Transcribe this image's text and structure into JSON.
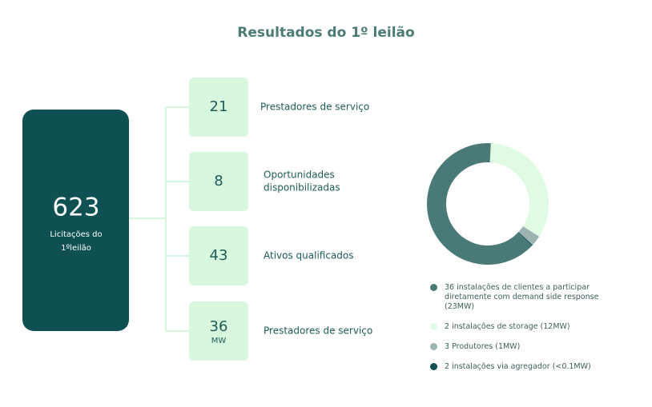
{
  "title": "Resultados do 1º leilão",
  "summary": {
    "value": 623,
    "label_lines": [
      "Licitações do",
      "1ºleilão"
    ]
  },
  "items": [
    {
      "value": 21,
      "label_lines": [
        "Prestadores de serviço"
      ]
    },
    {
      "value": 8,
      "label_lines": [
        "Oportunidades",
        "disponibilizadas"
      ]
    },
    {
      "value": 43,
      "label_lines": [
        "Ativos qualificados"
      ]
    },
    {
      "value": 36,
      "unit": "MW",
      "label_lines": [
        "Prestadores de serviço"
      ]
    }
  ],
  "chart_data": {
    "type": "pie",
    "donut": true,
    "categories": [
      "36 instalações de clientes a participar diretamente com demand side response (23MW)",
      "2 instalações de storage (12MW)",
      "3 Produtores (1MW)",
      "2 instalações via agregador (<0.1MW)"
    ],
    "values": [
      23,
      12,
      1,
      0.1
    ],
    "colors": [
      "#497a77",
      "#dffbe4",
      "#9db3b1",
      "#0f4f50"
    ]
  }
}
